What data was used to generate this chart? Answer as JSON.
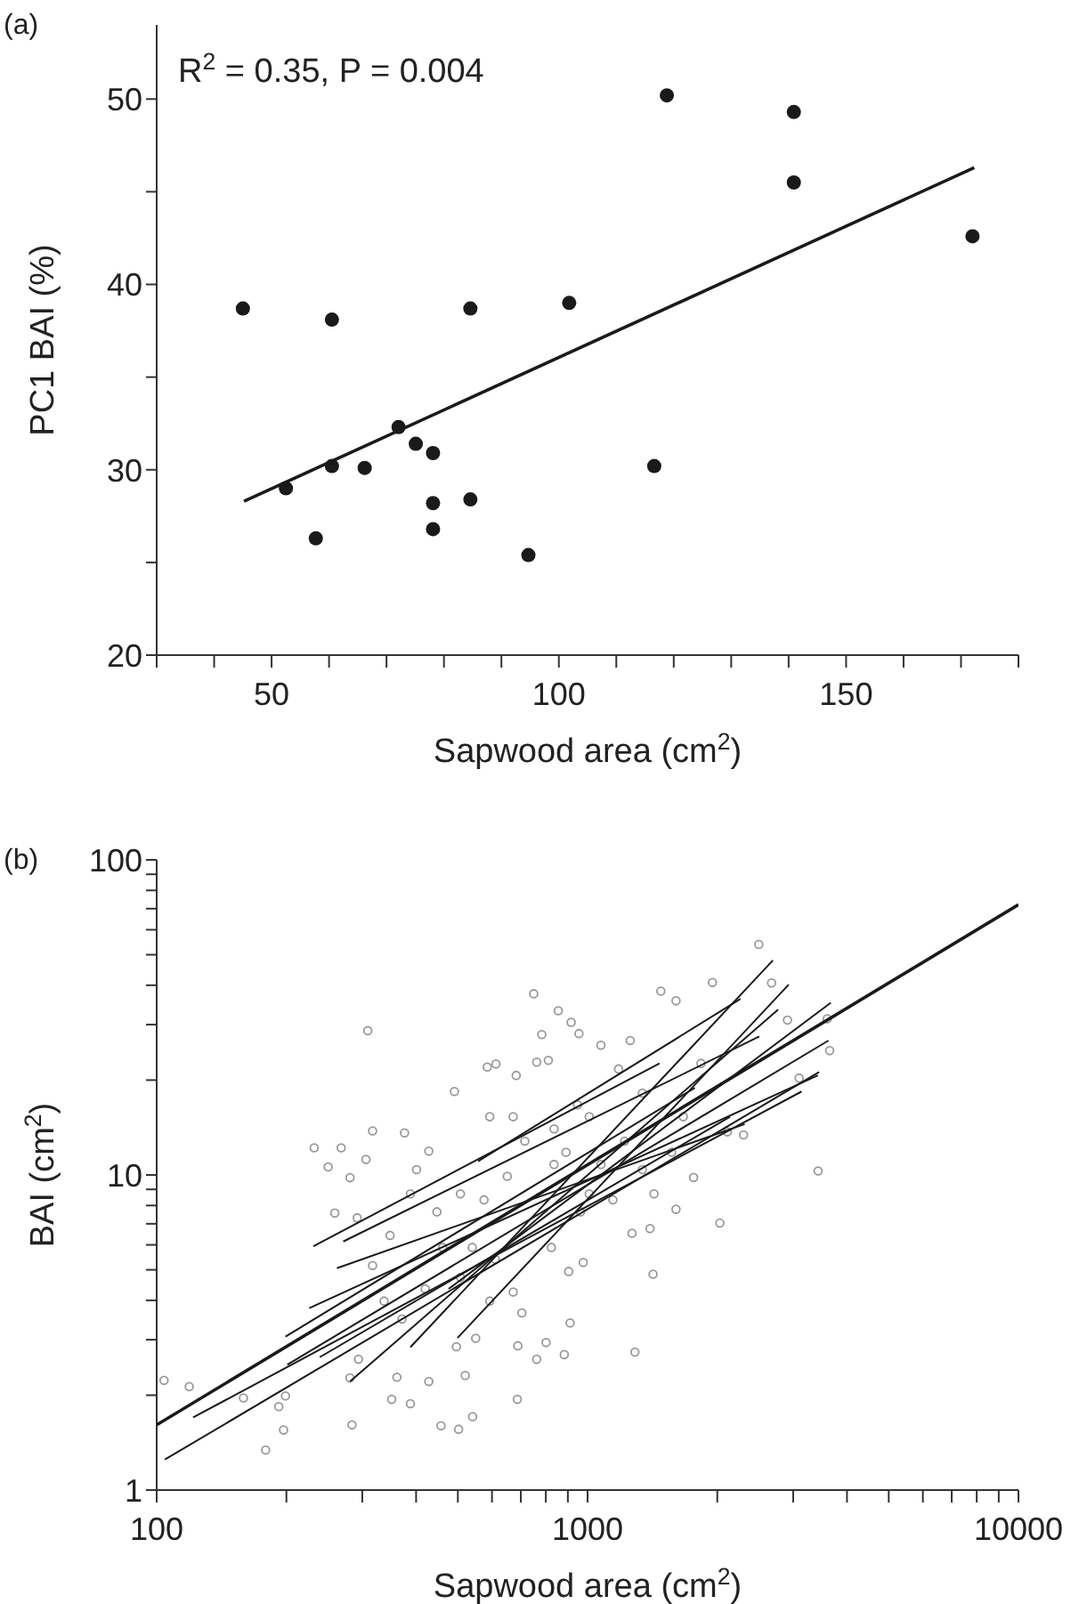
{
  "chart_data": [
    {
      "type": "scatter",
      "title": "(a)",
      "xlabel": "Sapwood area (cm$^{2}$)",
      "ylabel": "PC1 BAI (%)",
      "annotations": [
        "R$^{2}$ = 0.35, P = 0.004"
      ],
      "xlim": [
        30,
        180
      ],
      "xticks": [
        {
          "value": 30,
          "label": null
        },
        {
          "value": 40,
          "label": null
        },
        50,
        {
          "value": 60,
          "label": null
        },
        {
          "value": 70,
          "label": null
        },
        {
          "value": 80,
          "label": null
        },
        {
          "value": 90,
          "label": null
        },
        100,
        {
          "value": 110,
          "label": null
        },
        {
          "value": 120,
          "label": null
        },
        {
          "value": 130,
          "label": null
        },
        {
          "value": 140,
          "label": null
        },
        150,
        {
          "value": 160,
          "label": null
        },
        {
          "value": 170,
          "label": null
        },
        {
          "value": 180,
          "label": null
        }
      ],
      "ylim": [
        20,
        54
      ],
      "yticks": [
        20,
        {
          "value": 25,
          "label": null
        },
        30,
        {
          "value": 35,
          "label": null
        },
        40,
        {
          "value": 45,
          "label": null
        },
        50
      ],
      "series": [
        {
          "marker": "circle",
          "color": "#1a1a1a",
          "x": [
            45.0,
            52.5,
            57.7,
            60.5,
            60.5,
            66.2,
            72.1,
            75.1,
            78.1,
            78.1,
            78.1,
            84.6,
            84.6,
            94.7,
            101.8,
            116.6,
            118.8,
            140.9,
            140.9,
            172.0
          ],
          "values": [
            38.7,
            29.0,
            26.3,
            30.2,
            38.1,
            30.1,
            32.3,
            31.4,
            30.9,
            28.2,
            26.8,
            28.4,
            38.7,
            25.4,
            39.0,
            30.2,
            50.2,
            49.3,
            45.5,
            42.6
          ]
        },
        {
          "type": "line",
          "color": "#1a1a1a",
          "x": [
            45.2,
            172.3
          ],
          "values": [
            28.3,
            46.3
          ]
        }
      ]
    },
    {
      "type": "scatter",
      "title": "(b)",
      "xlabel": "Sapwood area (cm$^{2}$)",
      "ylabel": "BAI (cm$^{2}$)",
      "log": "xy",
      "xlim": [
        100,
        10000
      ],
      "xticks": [
        100,
        {
          "value": 200,
          "label": null
        },
        {
          "value": 300,
          "label": null
        },
        {
          "value": 400,
          "label": null
        },
        {
          "value": 500,
          "label": null
        },
        {
          "value": 600,
          "label": null
        },
        {
          "value": 700,
          "label": null
        },
        {
          "value": 800,
          "label": null
        },
        {
          "value": 900,
          "label": null
        },
        1000,
        {
          "value": 2000,
          "label": null
        },
        {
          "value": 3000,
          "label": null
        },
        {
          "value": 4000,
          "label": null
        },
        {
          "value": 5000,
          "label": null
        },
        {
          "value": 6000,
          "label": null
        },
        {
          "value": 7000,
          "label": null
        },
        {
          "value": 8000,
          "label": null
        },
        {
          "value": 9000,
          "label": null
        },
        10000
      ],
      "ylim": [
        1,
        100
      ],
      "yticks": [
        1,
        {
          "value": 2,
          "label": null
        },
        {
          "value": 3,
          "label": null
        },
        {
          "value": 4,
          "label": null
        },
        {
          "value": 5,
          "label": null
        },
        {
          "value": 6,
          "label": null
        },
        {
          "value": 7,
          "label": null
        },
        {
          "value": 8,
          "label": null
        },
        {
          "value": 9,
          "label": null
        },
        10,
        {
          "value": 20,
          "label": null
        },
        {
          "value": 30,
          "label": null
        },
        {
          "value": 40,
          "label": null
        },
        {
          "value": 50,
          "label": null
        },
        {
          "value": 60,
          "label": null
        },
        {
          "value": 70,
          "label": null
        },
        {
          "value": 80,
          "label": null
        },
        {
          "value": 90,
          "label": null
        },
        100
      ],
      "series": [
        {
          "marker": "circle",
          "color": "#999999",
          "x": [
            104,
            119,
            159,
            179,
            197,
            192,
            199,
            284,
            294,
            281,
            309,
            232,
            250,
            268,
            306,
            317,
            281,
            259,
            292,
            376,
            388,
            401,
            428,
            491,
            585,
            613,
            683,
            750,
            855,
            916,
            955,
            783,
            762,
            811,
            1074,
            1256,
            1479,
            1604,
            1949,
            2497,
            2673,
            2910,
            3600,
            3646,
            3098,
            3428,
            2028,
            2301,
            2111,
            1762,
            1604,
            1419,
            1288,
            1268,
            1396,
            911,
            883,
            801,
            762,
            689,
            687,
            704,
            541,
            502,
            457,
            428,
            388,
            351,
            361,
            520,
            550,
            496,
            611,
            672,
            824,
            904,
            977,
            963,
            1009,
            1145,
            891,
            836,
            1009,
            1219,
            1340,
            1426,
            1567,
            1668,
            1340,
            715,
            651,
            575,
            507,
            447,
            461,
            540,
            420,
            371,
            337,
            317,
            348,
            507,
            593,
            836,
            1074,
            948,
            1180,
            672,
            593,
            1833
          ],
          "values": [
            2.23,
            2.13,
            1.96,
            1.34,
            1.55,
            1.84,
            1.99,
            1.61,
            2.6,
            2.27,
            28.7,
            12.2,
            10.6,
            12.2,
            11.2,
            13.8,
            9.8,
            7.57,
            7.31,
            13.6,
            8.71,
            10.4,
            11.9,
            18.4,
            22.0,
            22.5,
            20.7,
            37.6,
            33.2,
            30.5,
            28.1,
            27.9,
            22.8,
            23.1,
            25.8,
            26.7,
            38.3,
            35.7,
            40.8,
            53.9,
            40.7,
            31.0,
            31.3,
            24.8,
            20.3,
            10.3,
            7.04,
            13.4,
            13.7,
            9.82,
            7.78,
            4.84,
            2.74,
            6.53,
            6.76,
            3.39,
            2.69,
            2.94,
            2.6,
            2.87,
            1.94,
            3.65,
            1.71,
            1.56,
            1.6,
            2.21,
            1.88,
            1.94,
            2.28,
            2.31,
            3.03,
            2.85,
            5.4,
            4.25,
            5.89,
            4.94,
            5.28,
            7.64,
            8.71,
            8.34,
            11.8,
            14.0,
            15.3,
            12.8,
            10.4,
            8.71,
            11.8,
            15.3,
            18.2,
            12.8,
            9.9,
            8.34,
            8.71,
            7.64,
            5.89,
            5.89,
            4.35,
            3.49,
            3.98,
            5.16,
            6.43,
            4.73,
            3.98,
            10.8,
            10.8,
            16.7,
            21.7,
            15.3,
            15.3,
            22.6
          ]
        },
        {
          "type": "line",
          "color": "#1a1a1a",
          "x": [
            100,
            10000
          ],
          "values": [
            1.61,
            72.1
          ]
        },
        {
          "type": "line",
          "color": "#1a1a1a",
          "x": [
            104.5,
            3446
          ],
          "values": [
            1.25,
            21.2
          ]
        },
        {
          "type": "line",
          "color": "#1a1a1a",
          "x": [
            121.5,
            3138
          ],
          "values": [
            1.7,
            18.4
          ]
        },
        {
          "type": "line",
          "color": "#1a1a1a",
          "x": [
            201,
            3623
          ],
          "values": [
            2.5,
            26.7
          ]
        },
        {
          "type": "line",
          "color": "#1a1a1a",
          "x": [
            199,
            1774
          ],
          "values": [
            3.07,
            18.9
          ]
        },
        {
          "type": "line",
          "color": "#1a1a1a",
          "x": [
            231,
            1469
          ],
          "values": [
            5.94,
            22.6
          ]
        },
        {
          "type": "line",
          "color": "#1a1a1a",
          "x": [
            271,
            2503
          ],
          "values": [
            6.15,
            27.5
          ]
        },
        {
          "type": "line",
          "color": "#1a1a1a",
          "x": [
            262,
            2315
          ],
          "values": [
            5.06,
            14.5
          ]
        },
        {
          "type": "line",
          "color": "#1a1a1a",
          "x": [
            226,
            3424
          ],
          "values": [
            3.78,
            20.7
          ]
        },
        {
          "type": "line",
          "color": "#1a1a1a",
          "x": [
            281,
            2768
          ],
          "values": [
            2.21,
            33.5
          ]
        },
        {
          "type": "line",
          "color": "#1a1a1a",
          "x": [
            388,
            2692
          ],
          "values": [
            2.84,
            48.0
          ]
        },
        {
          "type": "line",
          "color": "#1a1a1a",
          "x": [
            499,
            2930
          ],
          "values": [
            3.04,
            40.2
          ]
        },
        {
          "type": "line",
          "color": "#1a1a1a",
          "x": [
            557,
            2265
          ],
          "values": [
            11.05,
            36.2
          ]
        },
        {
          "type": "line",
          "color": "#1a1a1a",
          "x": [
            476,
            3669
          ],
          "values": [
            4.35,
            35.2
          ]
        },
        {
          "type": "line",
          "color": "#1a1a1a",
          "x": [
            239,
            2141
          ],
          "values": [
            2.64,
            15.3
          ]
        }
      ]
    }
  ]
}
